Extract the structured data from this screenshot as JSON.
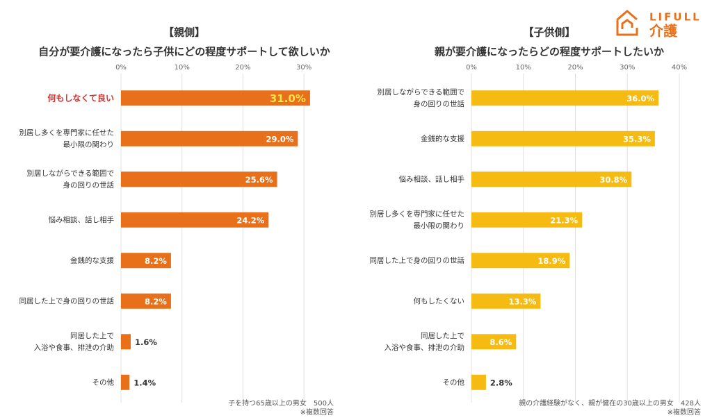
{
  "logo": {
    "brand": "LIFULL",
    "service": "介護"
  },
  "chart_data": [
    {
      "type": "bar",
      "orientation": "horizontal",
      "title": "【親側】",
      "subtitle": "自分が要介護になったら子供にどの程度サポートして欲しいか",
      "categories": [
        [
          "何もしなくて良い"
        ],
        [
          "別居し多くを専門家に任せた",
          "最小限の関わり"
        ],
        [
          "別居しながらできる範囲で",
          "身の回りの世話"
        ],
        [
          "悩み相談、話し相手"
        ],
        [
          "金銭的な支援"
        ],
        [
          "同居した上で身の回りの世話"
        ],
        [
          "同居した上で",
          "入浴や食事、排泄の介助"
        ],
        [
          "その他"
        ]
      ],
      "values": [
        31.0,
        29.0,
        25.6,
        24.2,
        8.2,
        8.2,
        1.6,
        1.4
      ],
      "value_labels": [
        "31.0%",
        "29.0%",
        "25.6%",
        "24.2%",
        "8.2%",
        "8.2%",
        "1.6%",
        "1.4%"
      ],
      "color": "#e8701a",
      "highlight": 0,
      "highlight_color": "#d0312d",
      "highlight_label_color": "#ffe14d",
      "xlim": [
        0,
        35
      ],
      "xticks": [
        {
          "value": 0,
          "label": "0%"
        },
        {
          "value": 10,
          "label": "10%"
        },
        {
          "value": 20,
          "label": "20%"
        },
        {
          "value": 30,
          "label": "30%"
        }
      ],
      "grid": true,
      "notes": [
        "子を持つ65歳以上の男女　500人",
        "※複数回答"
      ]
    },
    {
      "type": "bar",
      "orientation": "horizontal",
      "title": "【子供側】",
      "subtitle": "親が要介護になったらどの程度サポートしたいか",
      "categories": [
        [
          "別居しながらできる範囲で",
          "身の回りの世話"
        ],
        [
          "金銭的な支援"
        ],
        [
          "悩み相談、話し相手"
        ],
        [
          "別居し多くを専門家に任せた",
          "最小限の関わり"
        ],
        [
          "同居した上で身の回りの世話"
        ],
        [
          "何もしたくない"
        ],
        [
          "同居した上で",
          "入浴や食事、排泄の介助"
        ],
        [
          "その他"
        ]
      ],
      "values": [
        36.0,
        35.3,
        30.8,
        21.3,
        18.9,
        13.3,
        8.6,
        2.8
      ],
      "value_labels": [
        "36.0%",
        "35.3%",
        "30.8%",
        "21.3%",
        "18.9%",
        "13.3%",
        "8.6%",
        "2.8%"
      ],
      "color": "#f5bb12",
      "xlim": [
        0,
        40
      ],
      "xticks": [
        {
          "value": 0,
          "label": "0%"
        },
        {
          "value": 10,
          "label": "10%"
        },
        {
          "value": 20,
          "label": "20%"
        },
        {
          "value": 30,
          "label": "30%"
        },
        {
          "value": 40,
          "label": "40%"
        }
      ],
      "grid": true,
      "notes": [
        "親の介護経験がなく、親が健在の30歳以上の男女　428人",
        "※複数回答"
      ]
    }
  ]
}
